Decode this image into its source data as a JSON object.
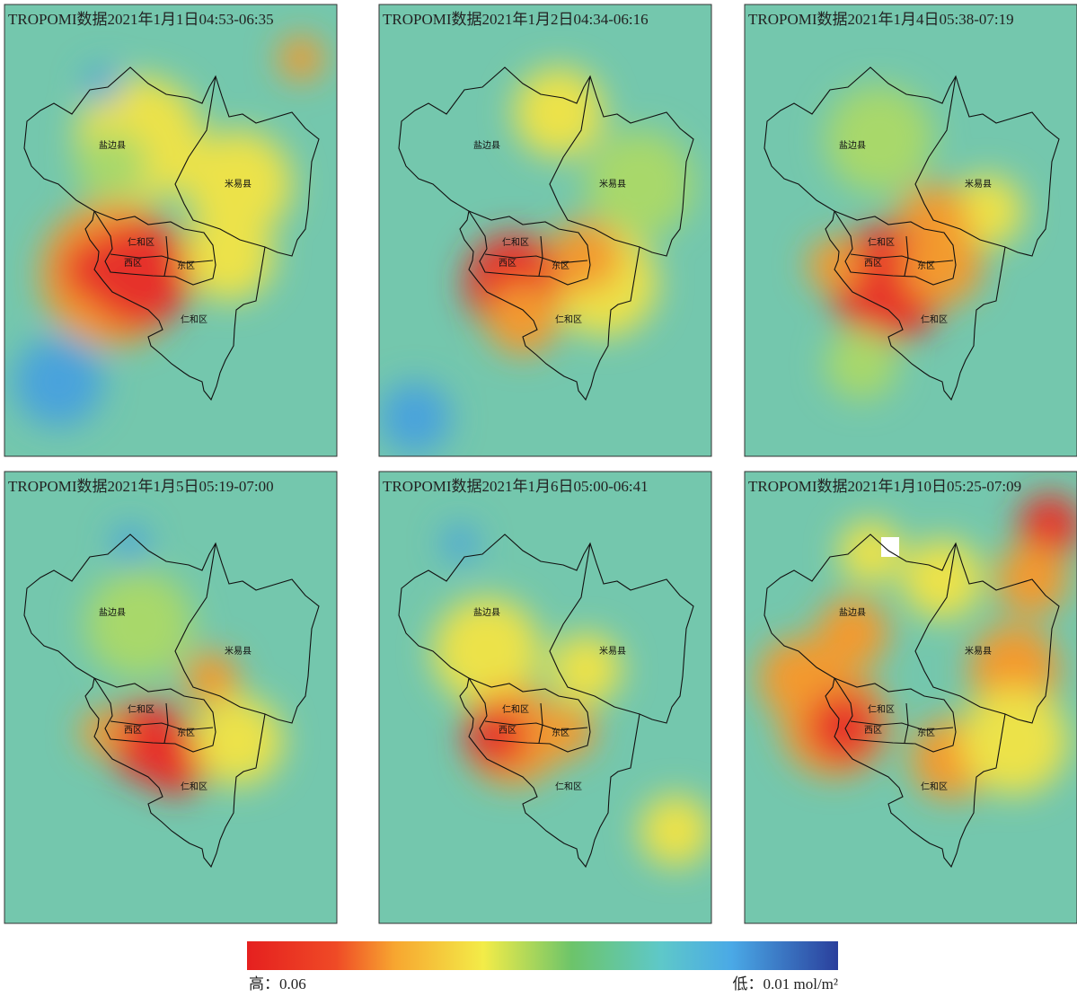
{
  "panels": [
    {
      "title": "TROPOMI数据2021年1月1日04:53-06:35",
      "labels": [
        "盐边县",
        "米易县",
        "仁和区",
        "西区",
        "东区",
        "仁和区"
      ]
    },
    {
      "title": "TROPOMI数据2021年1月2日04:34-06:16",
      "labels": [
        "盐边县",
        "米易县",
        "仁和区",
        "西区",
        "东区",
        "仁和区"
      ]
    },
    {
      "title": "TROPOMI数据2021年1月4日05:38-07:19",
      "labels": [
        "盐边县",
        "米易县",
        "仁和区",
        "西区",
        "东区",
        "仁和区"
      ]
    },
    {
      "title": "TROPOMI数据2021年1月5日05:19-07:00",
      "labels": [
        "盐边县",
        "米易县",
        "仁和区",
        "西区",
        "东区",
        "仁和区"
      ]
    },
    {
      "title": "TROPOMI数据2021年1月6日05:00-06:41",
      "labels": [
        "盐边县",
        "米易县",
        "仁和区",
        "西区",
        "东区",
        "仁和区"
      ]
    },
    {
      "title": "TROPOMI数据2021年1月10日05:25-07:09",
      "labels": [
        "盐边县",
        "米易县",
        "仁和区",
        "西区",
        "东区",
        "仁和区"
      ]
    }
  ],
  "colorbar": {
    "high_label": "高：0.06",
    "low_label": "低：0.01 mol/m²"
  }
}
